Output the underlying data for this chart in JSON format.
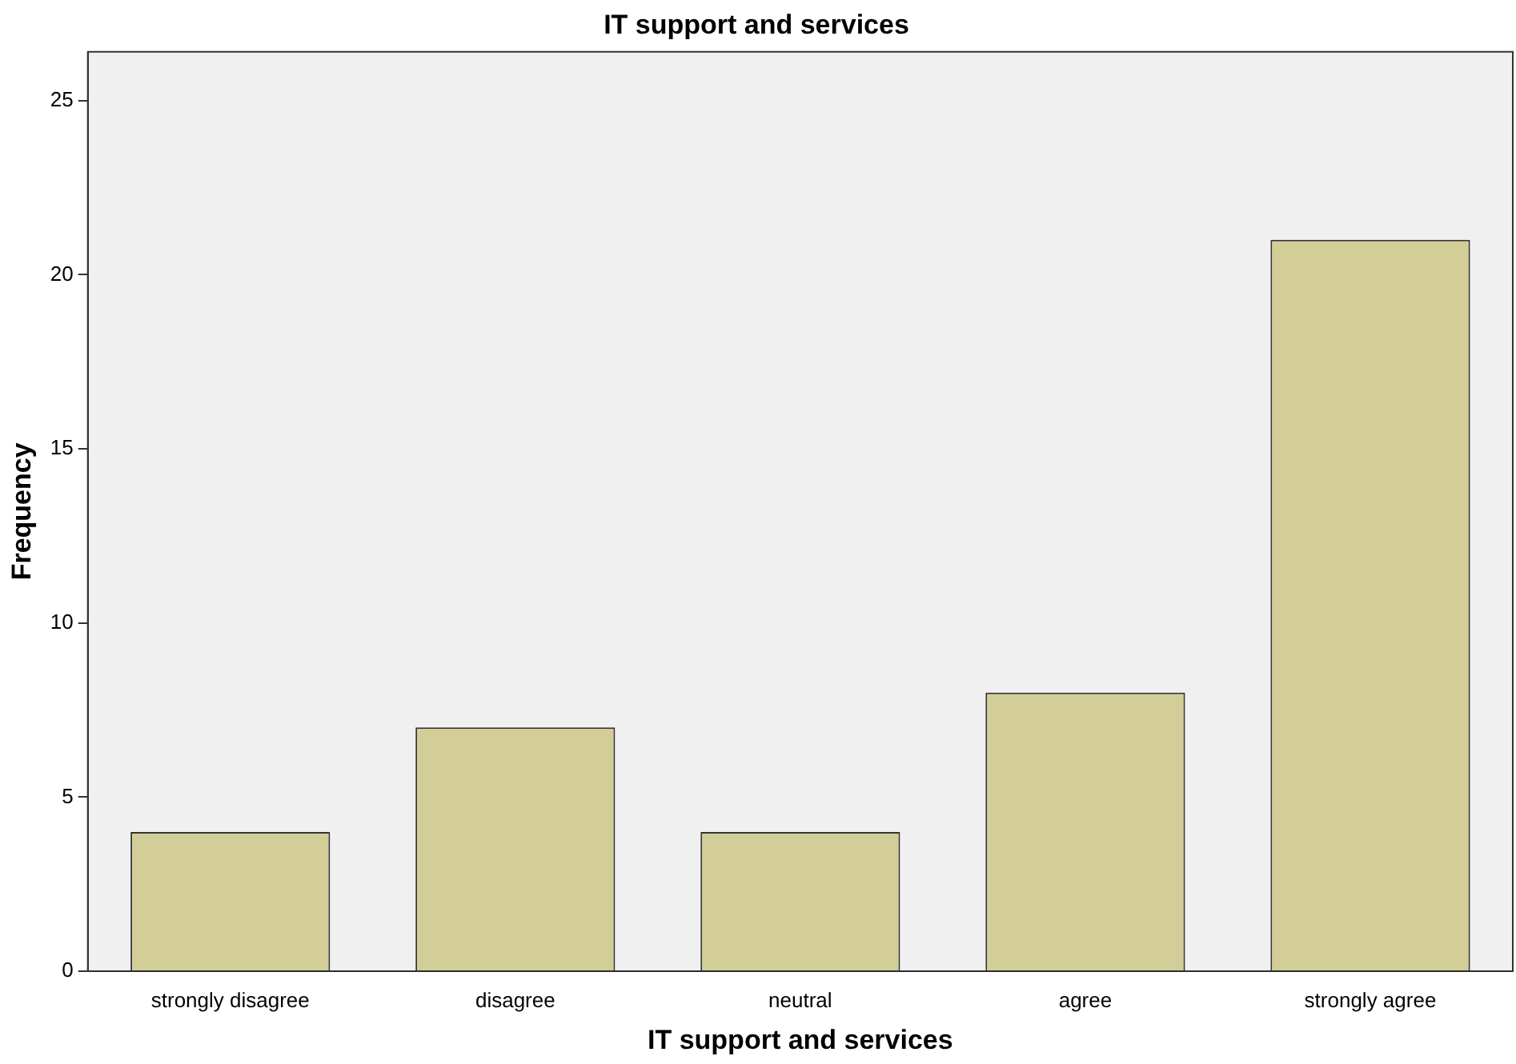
{
  "chart_data": {
    "type": "bar",
    "title": "IT support and services",
    "xlabel": "IT support and services",
    "ylabel": "Frequency",
    "categories": [
      "strongly disagree",
      "disagree",
      "neutral",
      "agree",
      "strongly agree"
    ],
    "values": [
      4,
      7,
      4,
      8,
      21
    ],
    "color": "#d3ce97",
    "ylim": [
      0,
      26.4
    ],
    "yticks": [
      0,
      5,
      10,
      15,
      20,
      25
    ],
    "grid": false
  }
}
